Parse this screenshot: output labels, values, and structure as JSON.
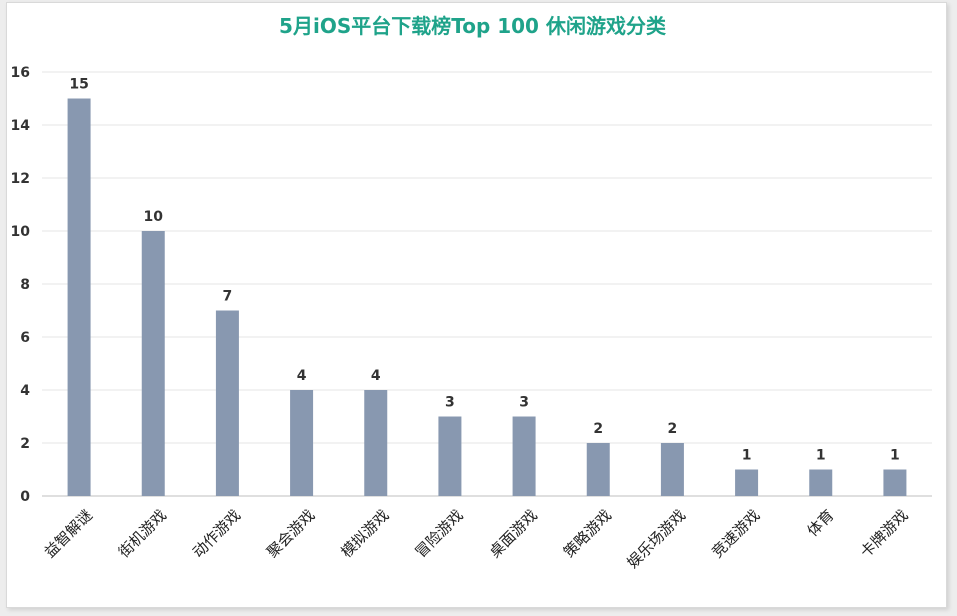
{
  "chart_data": {
    "type": "bar",
    "title": "5月iOS平台下载榜Top 100 休闲游戏分类",
    "categories": [
      "益智解谜",
      "街机游戏",
      "动作游戏",
      "聚会游戏",
      "模拟游戏",
      "冒险游戏",
      "桌面游戏",
      "策略游戏",
      "娱乐场游戏",
      "竞速游戏",
      "体育",
      "卡牌游戏"
    ],
    "values": [
      15,
      10,
      7,
      4,
      4,
      3,
      3,
      2,
      2,
      1,
      1,
      1
    ],
    "ylim": [
      0,
      16
    ],
    "yticks": [
      0,
      2,
      4,
      6,
      8,
      10,
      12,
      14,
      16
    ],
    "grid": true,
    "legend": "none",
    "colors": {
      "bar": "#8898b0",
      "title": "#1fa38a",
      "grid": "#e6e6e6",
      "axis": "#bfbfbf"
    }
  }
}
